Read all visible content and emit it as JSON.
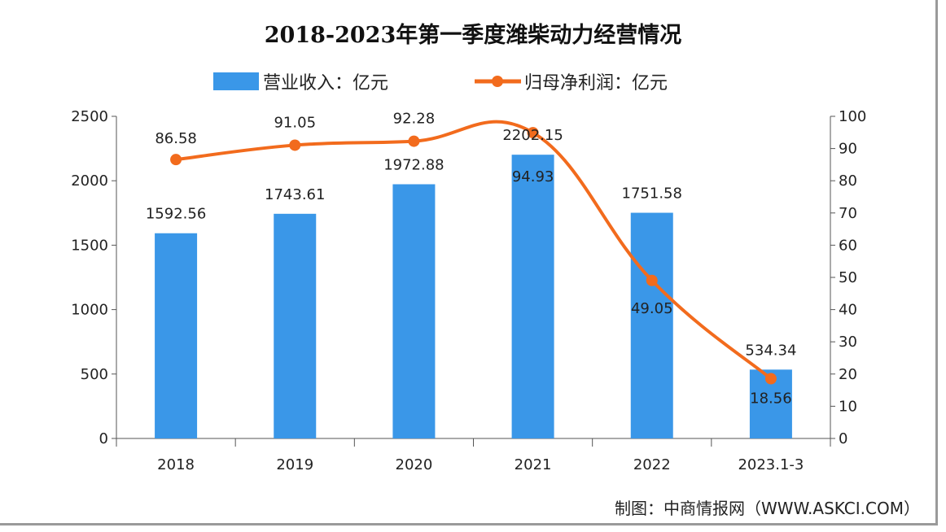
{
  "chart_data": {
    "type": "bar+line",
    "title": "2018-2023年第一季度潍柴动力经营情况",
    "categories": [
      "2018",
      "2019",
      "2020",
      "2021",
      "2022",
      "2023.1-3"
    ],
    "series": [
      {
        "name": "营业收入：亿元",
        "type": "bar",
        "axis": "left",
        "color": "#3a97e8",
        "values": [
          1592.56,
          1743.61,
          1972.88,
          2202.15,
          1751.58,
          534.34
        ],
        "labels": [
          "1592.56",
          "1743.61",
          "1972.88",
          "2202.15",
          "1751.58",
          "534.34"
        ]
      },
      {
        "name": "归母净利润：亿元",
        "type": "line",
        "axis": "right",
        "color": "#f26b1d",
        "values": [
          86.58,
          91.05,
          92.28,
          94.93,
          49.05,
          18.56
        ],
        "labels": [
          "86.58",
          "91.05",
          "92.28",
          "94.93",
          "49.05",
          "18.56"
        ]
      }
    ],
    "y_left": {
      "range": [
        0,
        2500
      ],
      "ticks": [
        "0",
        "500",
        "1000",
        "1500",
        "2000",
        "2500"
      ]
    },
    "y_right": {
      "range": [
        0,
        100
      ],
      "ticks": [
        "0",
        "10",
        "20",
        "30",
        "40",
        "50",
        "60",
        "70",
        "80",
        "90",
        "100"
      ]
    },
    "grid": false,
    "legend": "top",
    "source": "制图：中商情报网（WWW.ASKCI.COM）"
  }
}
